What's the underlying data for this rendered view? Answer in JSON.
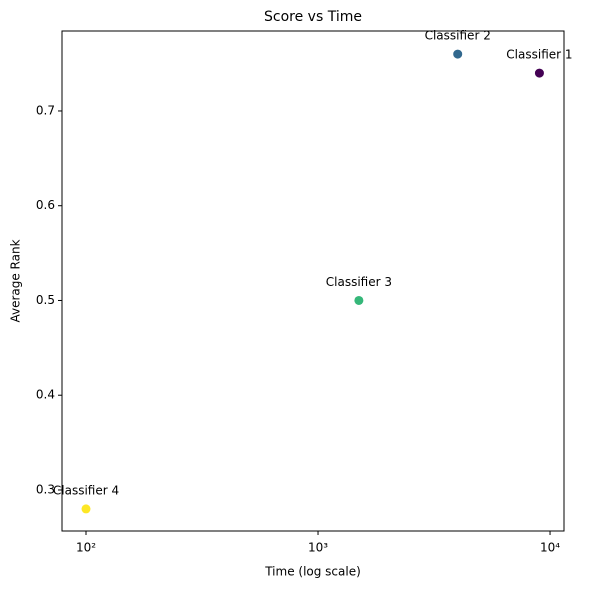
{
  "chart_data": {
    "type": "scatter",
    "title": "Score vs Time",
    "x_label": "Time (log scale)",
    "y_label": "Average Rank",
    "labels": [
      "Classifier 1",
      "Classifier 2",
      "Classifier 3",
      "Classifier 4"
    ],
    "x": [
      9000,
      4000,
      1500,
      100
    ],
    "values": [
      0.74,
      0.76,
      0.5,
      0.28
    ],
    "colors": [
      "#440154",
      "#31688e",
      "#35b779",
      "#fde725"
    ],
    "xscale": "log",
    "xlim": [
      78.8,
      11486
    ],
    "ylim": [
      0.2567,
      0.7844
    ],
    "xticks": [
      {
        "value": 100,
        "label": "10²"
      },
      {
        "value": 1000,
        "label": "10³"
      },
      {
        "value": 10000,
        "label": "10⁴"
      }
    ],
    "yticks": [
      0.3,
      0.4,
      0.5,
      0.6,
      0.7
    ],
    "grid": false
  }
}
